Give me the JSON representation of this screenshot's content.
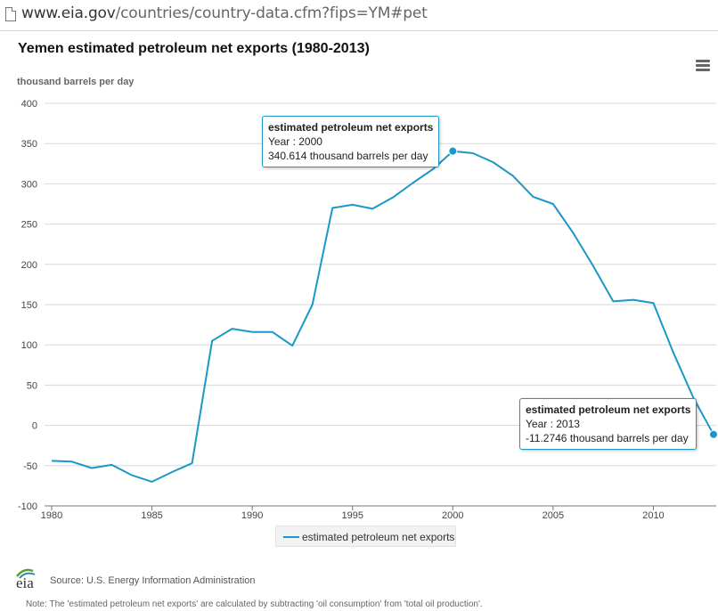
{
  "browser": {
    "url_domain": "www.eia.gov",
    "url_rest": "/countries/country-data.cfm?fips=YM#pet"
  },
  "header": {
    "title": "Yemen estimated petroleum net exports (1980-2013)",
    "menu_icon": "hamburger-menu-icon"
  },
  "tooltips": [
    {
      "title": "estimated petroleum net exports",
      "year_line": "Year : 2000",
      "value_line": "340.614 thousand barrels per day"
    },
    {
      "title": "estimated petroleum net exports",
      "year_line": "Year : 2013",
      "value_line": "-11.2746 thousand barrels per day"
    }
  ],
  "footer": {
    "logo_text": "eia",
    "source": "Source: U.S. Energy Information Administration",
    "note": "Note: The 'estimated petroleum net exports' are calculated by subtracting 'oil consumption' from 'total oil production'."
  },
  "colors": {
    "series": "#1a98c8",
    "grid": "#d8d8d8",
    "axis": "#777777"
  },
  "chart_data": {
    "type": "line",
    "title": "Yemen estimated petroleum net exports (1980-2013)",
    "ylabel": "thousand barrels per day",
    "xlabel": "",
    "xlim": [
      1980,
      2013
    ],
    "ylim": [
      -100,
      400
    ],
    "x_ticks": [
      1980,
      1985,
      1990,
      1995,
      2000,
      2005,
      2010
    ],
    "y_ticks": [
      -100,
      -50,
      0,
      50,
      100,
      150,
      200,
      250,
      300,
      350,
      400
    ],
    "grid": true,
    "legend_position": "bottom-center",
    "series": [
      {
        "name": "estimated petroleum net exports",
        "x": [
          1980,
          1981,
          1982,
          1983,
          1984,
          1985,
          1986,
          1987,
          1988,
          1989,
          1990,
          1991,
          1992,
          1993,
          1994,
          1995,
          1996,
          1997,
          1998,
          1999,
          2000,
          2001,
          2002,
          2003,
          2004,
          2005,
          2006,
          2007,
          2008,
          2009,
          2010,
          2011,
          2012,
          2013
        ],
        "values": [
          -44,
          -45,
          -53,
          -49,
          -62,
          -70,
          -58,
          -47,
          105,
          120,
          116,
          116,
          99,
          150,
          270,
          274,
          269,
          283,
          301,
          318,
          340.614,
          338,
          327,
          310,
          284,
          275,
          239,
          198,
          154,
          156,
          152,
          90,
          34,
          -11.2746
        ]
      }
    ],
    "highlighted_points": [
      2000,
      2013
    ]
  }
}
